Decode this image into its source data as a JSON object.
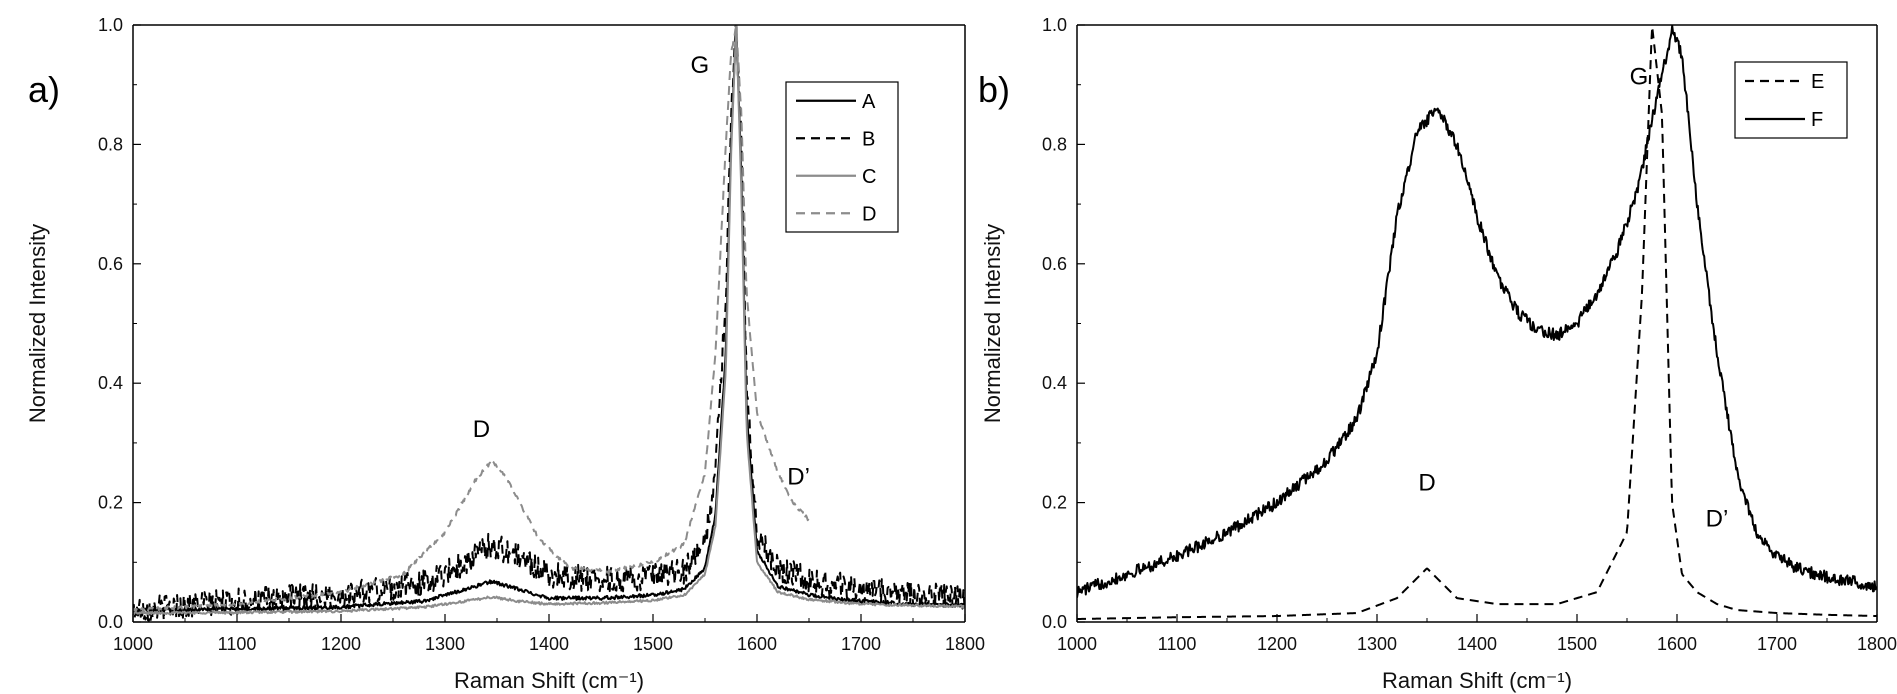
{
  "chart_data": [
    {
      "type": "line",
      "panel_label": "a)",
      "xlabel": "Raman Shift (cm⁻¹)",
      "ylabel": "Normalized Intensity",
      "xlim": [
        1000,
        1800
      ],
      "ylim": [
        0,
        1.0
      ],
      "xticks": [
        "1000",
        "1100",
        "1200",
        "1300",
        "1400",
        "1500",
        "1600",
        "1700",
        "1800"
      ],
      "yticks": [
        "0.0",
        "0.2",
        "0.4",
        "0.6",
        "0.8",
        "1.0"
      ],
      "grid": false,
      "legend_position": "top-right",
      "annotations": [
        {
          "text": "G",
          "x": 1545,
          "y": 0.92
        },
        {
          "text": "D",
          "x": 1335,
          "y": 0.31
        },
        {
          "text": "D’",
          "x": 1640,
          "y": 0.23
        }
      ],
      "series": [
        {
          "name": "A",
          "color": "#000000",
          "dash": "solid",
          "noise": 0.003,
          "x": [
            1000,
            1100,
            1200,
            1280,
            1320,
            1345,
            1370,
            1400,
            1450,
            1500,
            1530,
            1550,
            1560,
            1570,
            1575,
            1580,
            1585,
            1590,
            1600,
            1620,
            1650,
            1700,
            1750,
            1800
          ],
          "y": [
            0.02,
            0.022,
            0.025,
            0.035,
            0.055,
            0.068,
            0.055,
            0.04,
            0.04,
            0.045,
            0.055,
            0.09,
            0.18,
            0.45,
            0.8,
            1.0,
            0.75,
            0.35,
            0.12,
            0.06,
            0.045,
            0.035,
            0.03,
            0.028
          ]
        },
        {
          "name": "B",
          "color": "#000000",
          "dash": "dashed",
          "noise": 0.022,
          "x": [
            1000,
            1100,
            1200,
            1280,
            1320,
            1345,
            1370,
            1400,
            1450,
            1500,
            1530,
            1550,
            1560,
            1570,
            1575,
            1580,
            1585,
            1590,
            1600,
            1620,
            1650,
            1700,
            1750,
            1800
          ],
          "y": [
            0.02,
            0.035,
            0.045,
            0.065,
            0.1,
            0.13,
            0.11,
            0.08,
            0.07,
            0.075,
            0.085,
            0.13,
            0.25,
            0.55,
            0.85,
            1.0,
            0.8,
            0.4,
            0.15,
            0.09,
            0.07,
            0.055,
            0.045,
            0.04
          ]
        },
        {
          "name": "C",
          "color": "#8c8c8c",
          "dash": "solid",
          "noise": 0.002,
          "x": [
            1000,
            1100,
            1200,
            1280,
            1320,
            1345,
            1370,
            1400,
            1450,
            1500,
            1530,
            1550,
            1560,
            1570,
            1575,
            1580,
            1585,
            1590,
            1600,
            1620,
            1650,
            1700,
            1750,
            1800
          ],
          "y": [
            0.015,
            0.016,
            0.018,
            0.025,
            0.035,
            0.042,
            0.035,
            0.03,
            0.032,
            0.036,
            0.045,
            0.08,
            0.16,
            0.42,
            0.78,
            1.0,
            0.72,
            0.32,
            0.1,
            0.05,
            0.038,
            0.03,
            0.028,
            0.026
          ]
        },
        {
          "name": "D",
          "color": "#8c8c8c",
          "dash": "dashed",
          "noise": 0.003,
          "x": [
            1000,
            1100,
            1200,
            1260,
            1300,
            1330,
            1345,
            1360,
            1390,
            1420,
            1460,
            1500,
            1530,
            1550,
            1560,
            1570,
            1575,
            1580,
            1585,
            1590,
            1600,
            1620,
            1635,
            1650
          ],
          "y": [
            0.02,
            0.03,
            0.05,
            0.08,
            0.15,
            0.24,
            0.27,
            0.24,
            0.14,
            0.09,
            0.085,
            0.1,
            0.13,
            0.25,
            0.45,
            0.8,
            0.95,
            1.0,
            0.85,
            0.55,
            0.35,
            0.25,
            0.2,
            0.17
          ]
        }
      ]
    },
    {
      "type": "line",
      "panel_label": "b)",
      "xlabel": "Raman Shift (cm⁻¹)",
      "ylabel": "Normalized Intensity",
      "xlim": [
        1000,
        1800
      ],
      "ylim": [
        0,
        1.0
      ],
      "xticks": [
        "1000",
        "1100",
        "1200",
        "1300",
        "1400",
        "1500",
        "1600",
        "1700",
        "1800"
      ],
      "yticks": [
        "0.0",
        "0.2",
        "0.4",
        "0.6",
        "0.8",
        "1.0"
      ],
      "grid": false,
      "legend_position": "top-right",
      "annotations": [
        {
          "text": "G",
          "x": 1562,
          "y": 0.9
        },
        {
          "text": "D",
          "x": 1350,
          "y": 0.22
        },
        {
          "text": "D’",
          "x": 1640,
          "y": 0.16
        }
      ],
      "series": [
        {
          "name": "E",
          "color": "#000000",
          "dash": "dashed",
          "noise": 0.0,
          "x": [
            1000,
            1100,
            1200,
            1280,
            1320,
            1350,
            1380,
            1420,
            1480,
            1520,
            1550,
            1565,
            1575,
            1585,
            1595,
            1605,
            1620,
            1640,
            1660,
            1700,
            1750,
            1800
          ],
          "y": [
            0.005,
            0.008,
            0.01,
            0.015,
            0.04,
            0.09,
            0.04,
            0.03,
            0.03,
            0.05,
            0.15,
            0.55,
            1.0,
            0.85,
            0.2,
            0.08,
            0.05,
            0.03,
            0.02,
            0.015,
            0.012,
            0.01
          ]
        },
        {
          "name": "F",
          "color": "#000000",
          "dash": "solid",
          "noise": 0.01,
          "x": [
            1000,
            1050,
            1100,
            1150,
            1200,
            1250,
            1280,
            1300,
            1320,
            1340,
            1360,
            1380,
            1400,
            1420,
            1440,
            1460,
            1480,
            1500,
            1520,
            1540,
            1560,
            1580,
            1595,
            1605,
            1620,
            1640,
            1660,
            1680,
            1700,
            1720,
            1750,
            1800
          ],
          "y": [
            0.05,
            0.08,
            0.11,
            0.15,
            0.2,
            0.27,
            0.34,
            0.45,
            0.68,
            0.82,
            0.86,
            0.8,
            0.68,
            0.58,
            0.52,
            0.49,
            0.48,
            0.5,
            0.55,
            0.62,
            0.72,
            0.88,
            0.99,
            0.95,
            0.7,
            0.45,
            0.25,
            0.15,
            0.11,
            0.09,
            0.075,
            0.06
          ]
        }
      ]
    }
  ]
}
